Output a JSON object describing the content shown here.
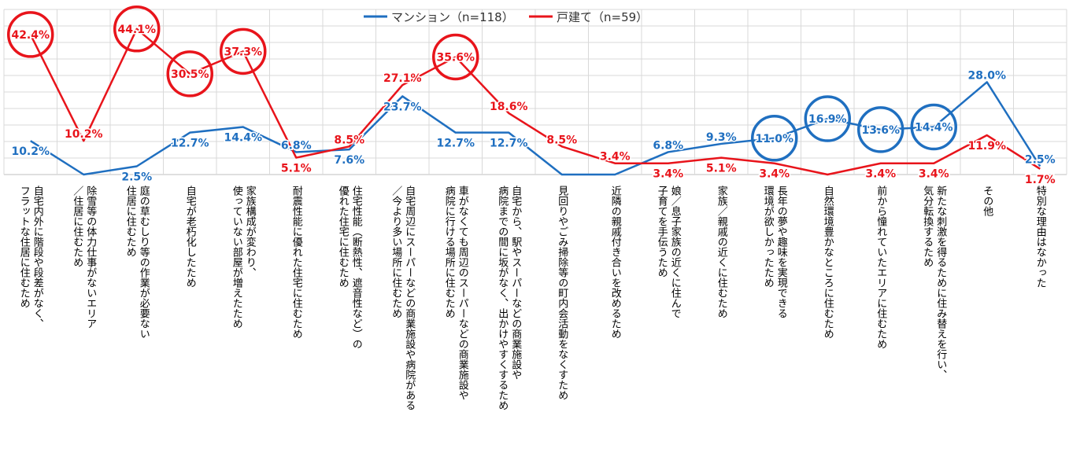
{
  "chart_data": {
    "type": "line",
    "ylim": [
      0,
      50
    ],
    "grid": true,
    "legend_position": "top-center",
    "categories": [
      [
        "自宅内外に階段や段差がなく、",
        "フラットな住居に住むため"
      ],
      [
        "除雪等の体力仕事がないエリア",
        "／住居に住むため"
      ],
      [
        "庭の草むしり等の作業が必要ない",
        "住居に住むため"
      ],
      [
        "自宅が老朽化したため"
      ],
      [
        "家族構成が変わり、",
        "使っていない部屋が増えたため"
      ],
      [
        "耐震性能に優れた住宅に住むため"
      ],
      [
        "住宅性能（断熱性、遮音性など）の",
        "優れた住宅に住むため"
      ],
      [
        "自宅周辺にスーパーなどの商業施設や病院がある",
        "／今より多い場所に住むため"
      ],
      [
        "車がなくても周辺のスーパーなどの商業施設や",
        "病院に行ける場所に住むため"
      ],
      [
        "自宅から、駅やスーパーなどの商業施設や",
        "病院までの間に坂がなく、出かけやすくするため"
      ],
      [
        "見回りやごみ掃除等の町内会活動をなくすため"
      ],
      [
        "近隣の親戚付き合いを改めるため"
      ],
      [
        "娘／息子家族の近くに住んで",
        "子育てを手伝うため"
      ],
      [
        "家族／親戚の近くに住むため"
      ],
      [
        "長年の夢や趣味を実現できる",
        "環境が欲しかったため"
      ],
      [
        "自然環境豊かなところに住むため"
      ],
      [
        "前から憧れていたエリアに住むため"
      ],
      [
        "新たな刺激を得るために住み替えを行い、",
        "気分転換するため"
      ],
      [
        "その他"
      ],
      [
        "特別な理由はなかった"
      ]
    ],
    "series": [
      {
        "name": "マンション（n=118）",
        "color": "#1f6fc0",
        "values": [
          10.2,
          0,
          2.5,
          12.7,
          14.4,
          6.8,
          7.6,
          23.7,
          12.7,
          12.7,
          0,
          0,
          6.8,
          9.3,
          11.0,
          16.9,
          13.6,
          14.4,
          28.0,
          2.5
        ],
        "labels": [
          "10.2%",
          "",
          "2.5%",
          "12.7%",
          "14.4%",
          "6.8%",
          "7.6%",
          "23.7%",
          "12.7%",
          "12.7%",
          "",
          "",
          "6.8%",
          "9.3%",
          "11.0%",
          "16.9%",
          "13.6%",
          "14.4%",
          "28.0%",
          "2.5%"
        ],
        "circled": [
          14,
          15,
          16,
          17
        ]
      },
      {
        "name": "戸建て（n=59）",
        "color": "#e8141b",
        "values": [
          42.4,
          10.2,
          44.1,
          30.5,
          37.3,
          5.1,
          8.5,
          27.1,
          35.6,
          18.6,
          8.5,
          3.4,
          3.4,
          5.1,
          3.4,
          0,
          3.4,
          3.4,
          11.9,
          1.7
        ],
        "labels": [
          "42.4%",
          "10.2%",
          "44.1%",
          "30.5%",
          "37.3%",
          "5.1%",
          "8.5%",
          "27.1%",
          "35.6%",
          "18.6%",
          "8.5%",
          "3.4%",
          "3.4%",
          "5.1%",
          "3.4%",
          "",
          "3.4%",
          "3.4%",
          "11.9%",
          "1.7%"
        ],
        "circled": [
          0,
          2,
          3,
          4,
          8
        ]
      }
    ]
  }
}
